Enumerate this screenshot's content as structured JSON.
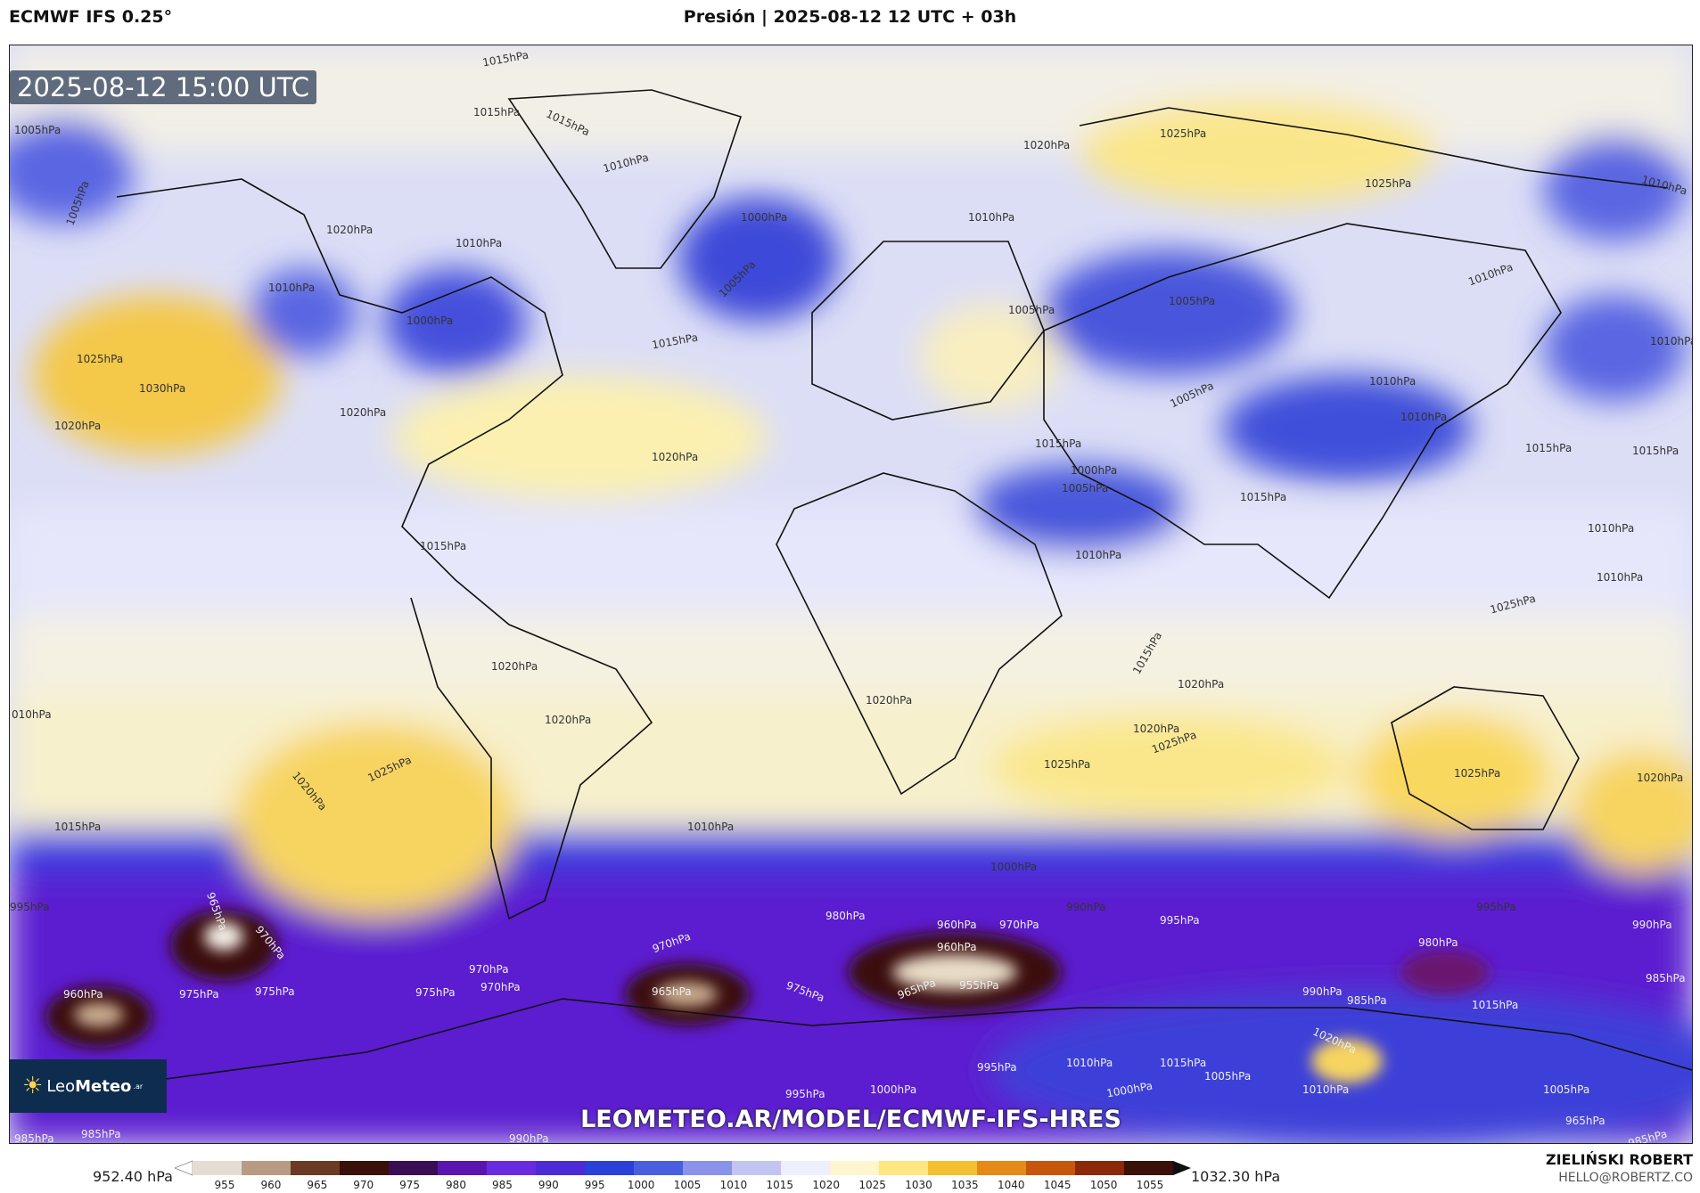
{
  "header": {
    "model": "ECMWF IFS 0.25°",
    "title": "Presión | 2025-08-12 12 UTC + 03h"
  },
  "map": {
    "timestamp": "2025-08-12 15:00 UTC",
    "url": "LEOMETEO.AR/MODEL/ECMWF-IFS-HRES",
    "logo_text_a": "Leo",
    "logo_text_b": "Meteo",
    "logo_suffix": ".ar",
    "logo_icon": "sun-icon",
    "isobar_labels": [
      "1005hPa",
      "1015hPa",
      "1015hPa",
      "1015hPa",
      "1010hPa",
      "1020hPa",
      "1025hPa",
      "1025hPa",
      "1010hPa",
      "1020hPa",
      "1010hPa",
      "1000hPa",
      "1010hPa",
      "1010hPa",
      "1000hPa",
      "1005hPa",
      "1005hPa",
      "1010hPa",
      "1010hPa",
      "1005hPa",
      "1005hPa",
      "1025hPa",
      "1030hPa",
      "1020hPa",
      "1020hPa",
      "1015hPa",
      "1005hPa",
      "1015hPa",
      "1010hPa",
      "1015hPa",
      "1020hPa",
      "1015hPa",
      "1010hPa",
      "1005hPa",
      "1000hPa",
      "1010hPa",
      "1015hPa",
      "1010hPa",
      "1015hPa",
      "1010hPa",
      "1015hPa",
      "1020hPa",
      "1020hPa",
      "1025hPa",
      "1020hPa",
      "1020hPa",
      "1025hPa",
      "1025hPa",
      "1020hPa",
      "1025hPa",
      "1020hPa",
      "010hPa",
      "1020hPa",
      "1025hPa",
      "1015hPa",
      "1010hPa",
      "1000hPa",
      "990hPa",
      "995hPa",
      "995hPa",
      "990hPa",
      "985hPa",
      "965hPa",
      "970hPa",
      "975hPa",
      "970hPa",
      "960hPa",
      "960hPa",
      "975hPa",
      "975hPa",
      "970hPa",
      "970hPa",
      "965hPa",
      "980hPa",
      "960hPa",
      "970hPa",
      "965hPa",
      "955hPa",
      "975hPa",
      "980hPa",
      "990hPa",
      "985hPa",
      "995hPa",
      "1015hPa",
      "1020hPa",
      "1010hPa",
      "1015hPa",
      "1005hPa",
      "1000hPa",
      "995hPa",
      "995hPa",
      "1000hPa",
      "1010hPa",
      "1005hPa",
      "965hPa",
      "985hPa",
      "985hPa",
      "985hPa",
      "990hPa"
    ]
  },
  "colorbar": {
    "min_label": "952.40 hPa",
    "max_label": "1032.30 hPa",
    "ticks": [
      "955",
      "960",
      "965",
      "970",
      "975",
      "980",
      "985",
      "990",
      "995",
      "1000",
      "1005",
      "1010",
      "1015",
      "1020",
      "1025",
      "1030",
      "1035",
      "1040",
      "1045",
      "1050",
      "1055"
    ],
    "colors": [
      "#ffffff",
      "#e6ddd2",
      "#b99a82",
      "#6b3a23",
      "#3a1008",
      "#3a0d55",
      "#5a14b0",
      "#6a2ae0",
      "#4c2ad8",
      "#2a40d8",
      "#4a5fe0",
      "#8a92ea",
      "#c2c5f2",
      "#eeeeff",
      "#fff6cf",
      "#ffe680",
      "#f5c030",
      "#e58a18",
      "#c5560c",
      "#8a2808",
      "#3a1008",
      "#101010"
    ]
  },
  "credits": {
    "author": "ZIELIŃSKI ROBERT",
    "email": "HELLO@ROBERTZ.CO"
  }
}
